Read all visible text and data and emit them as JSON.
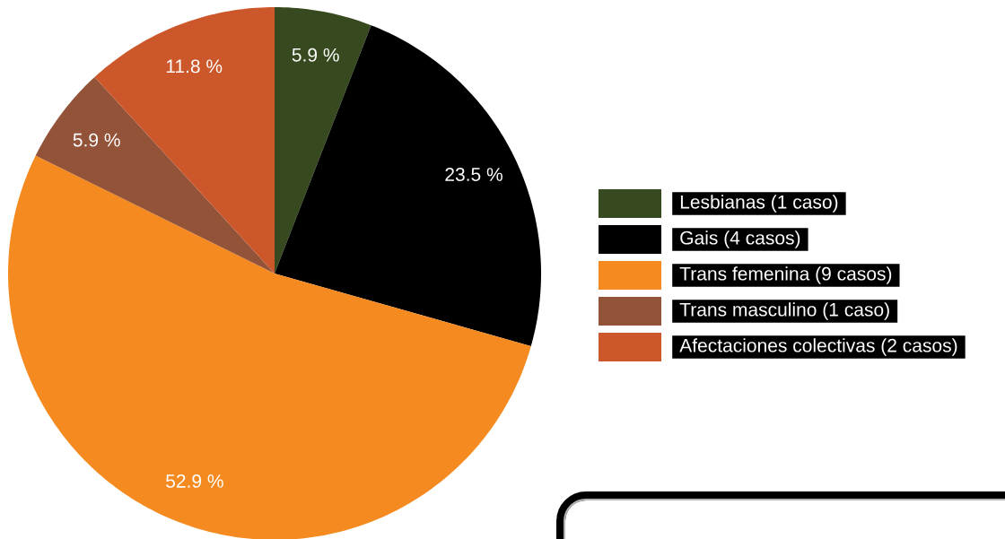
{
  "chart_data": {
    "type": "pie",
    "categories": [
      "Lesbianas (1 caso)",
      "Gais (4 casos)",
      "Trans femenina (9 casos)",
      "Trans masculino (1 caso)",
      "Afectaciones colectivas (2 casos)"
    ],
    "values": [
      5.9,
      23.5,
      52.9,
      5.9,
      11.8
    ],
    "colors": [
      "#374a1f",
      "#000000",
      "#f58b20",
      "#935338",
      "#cc572b"
    ],
    "value_labels": [
      "5.9 %",
      "23.5 %",
      "52.9 %",
      "5.9 %",
      "11.8 %"
    ],
    "legend": "right"
  }
}
